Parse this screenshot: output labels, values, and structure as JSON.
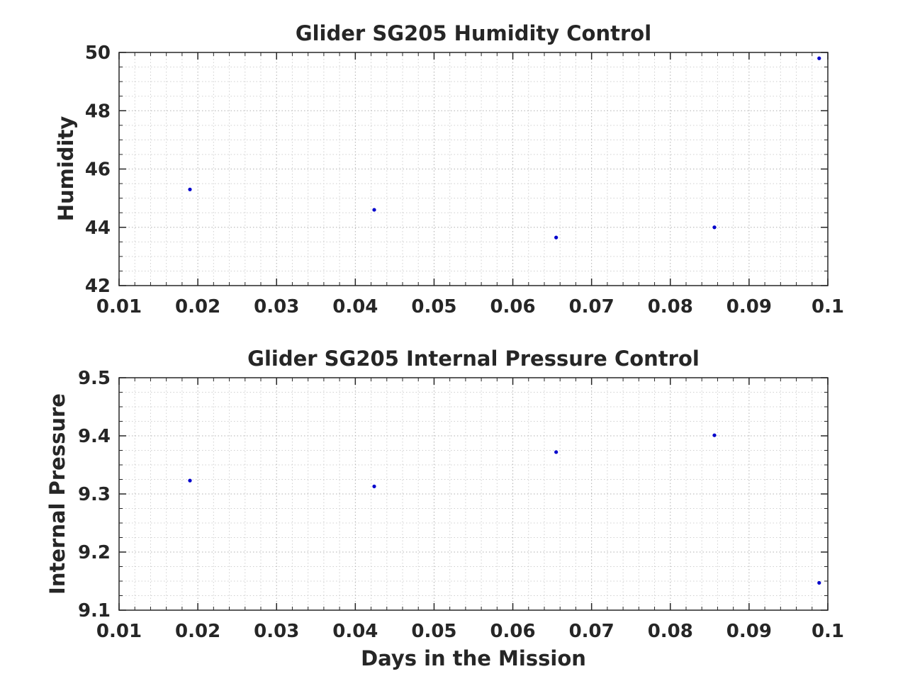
{
  "chart_data": [
    {
      "type": "scatter",
      "title": "Glider SG205 Humidity Control",
      "xlabel": "",
      "ylabel": "Humidity",
      "xlim": [
        0.01,
        0.1
      ],
      "ylim": [
        42,
        50
      ],
      "xticks": [
        0.01,
        0.02,
        0.03,
        0.04,
        0.05,
        0.06,
        0.07,
        0.08,
        0.09,
        0.1
      ],
      "xtick_labels": [
        "0.01",
        "0.02",
        "0.03",
        "0.04",
        "0.05",
        "0.06",
        "0.07",
        "0.08",
        "0.09",
        "0.1"
      ],
      "yticks": [
        42,
        44,
        46,
        48,
        50
      ],
      "ytick_labels": [
        "42",
        "44",
        "46",
        "48",
        "50"
      ],
      "grid": "on (major and minor, dotted)",
      "marker_color": "#0000cc",
      "x": [
        0.019,
        0.0424,
        0.0655,
        0.0856,
        0.0989
      ],
      "y": [
        45.3,
        44.6,
        43.65,
        44.0,
        49.8
      ]
    },
    {
      "type": "scatter",
      "title": "Glider SG205 Internal Pressure Control",
      "xlabel": "Days in the Mission",
      "ylabel": "Internal Pressure",
      "xlim": [
        0.01,
        0.1
      ],
      "ylim": [
        9.1,
        9.5
      ],
      "xticks": [
        0.01,
        0.02,
        0.03,
        0.04,
        0.05,
        0.06,
        0.07,
        0.08,
        0.09,
        0.1
      ],
      "xtick_labels": [
        "0.01",
        "0.02",
        "0.03",
        "0.04",
        "0.05",
        "0.06",
        "0.07",
        "0.08",
        "0.09",
        "0.1"
      ],
      "yticks": [
        9.1,
        9.2,
        9.3,
        9.4,
        9.5
      ],
      "ytick_labels": [
        "9.1",
        "9.2",
        "9.3",
        "9.4",
        "9.5"
      ],
      "grid": "on (major and minor, dotted)",
      "marker_color": "#0000cc",
      "x": [
        0.019,
        0.0424,
        0.0655,
        0.0856,
        0.0989
      ],
      "y": [
        9.323,
        9.313,
        9.372,
        9.401,
        9.147
      ]
    }
  ]
}
